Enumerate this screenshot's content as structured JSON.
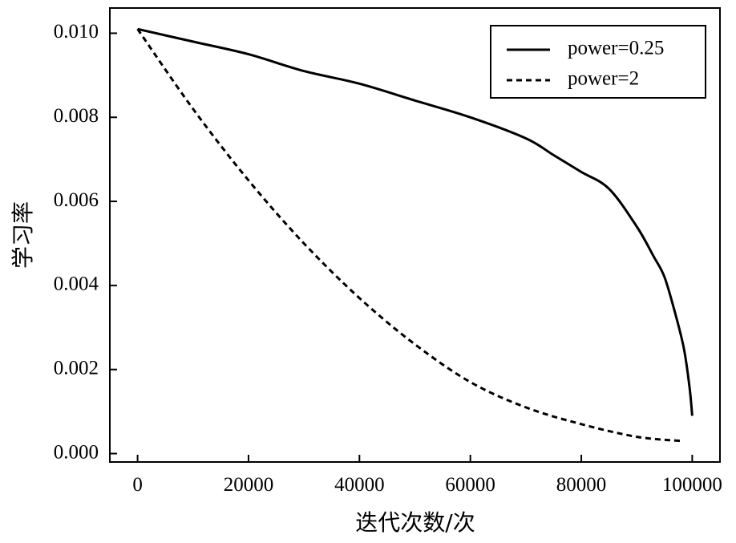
{
  "chart_data": {
    "type": "line",
    "title": "",
    "xlabel": "迭代次数/次",
    "ylabel": "学习率",
    "xlim": [
      -5000,
      105000
    ],
    "ylim": [
      -0.0002,
      0.0106
    ],
    "xticks": [
      0,
      20000,
      40000,
      60000,
      80000,
      100000
    ],
    "xtick_labels": [
      "0",
      "20000",
      "40000",
      "60000",
      "80000",
      "100000"
    ],
    "yticks": [
      0.0,
      0.002,
      0.004,
      0.006,
      0.008,
      0.01
    ],
    "ytick_labels": [
      "0.000",
      "0.002",
      "0.004",
      "0.006",
      "0.008",
      "0.010"
    ],
    "grid": false,
    "legend_position": "top-right",
    "series": [
      {
        "name": "power=0.25",
        "style": "solid",
        "color": "#000000",
        "x": [
          0,
          10000,
          20000,
          30000,
          40000,
          50000,
          60000,
          70000,
          75000,
          80000,
          85000,
          90000,
          93000,
          95000,
          97000,
          98500,
          99500,
          100000
        ],
        "y": [
          0.0101,
          0.0098,
          0.0095,
          0.0091,
          0.0088,
          0.0084,
          0.008,
          0.0075,
          0.0071,
          0.0067,
          0.0063,
          0.0054,
          0.0047,
          0.0042,
          0.0033,
          0.0025,
          0.0016,
          0.0009
        ]
      },
      {
        "name": "power=2",
        "style": "dashed",
        "color": "#000000",
        "x": [
          0,
          10000,
          20000,
          30000,
          40000,
          50000,
          60000,
          70000,
          80000,
          90000,
          98000
        ],
        "y": [
          0.0101,
          0.0082,
          0.0065,
          0.005,
          0.0037,
          0.0026,
          0.0017,
          0.0011,
          0.0007,
          0.0004,
          0.0003
        ]
      }
    ]
  }
}
